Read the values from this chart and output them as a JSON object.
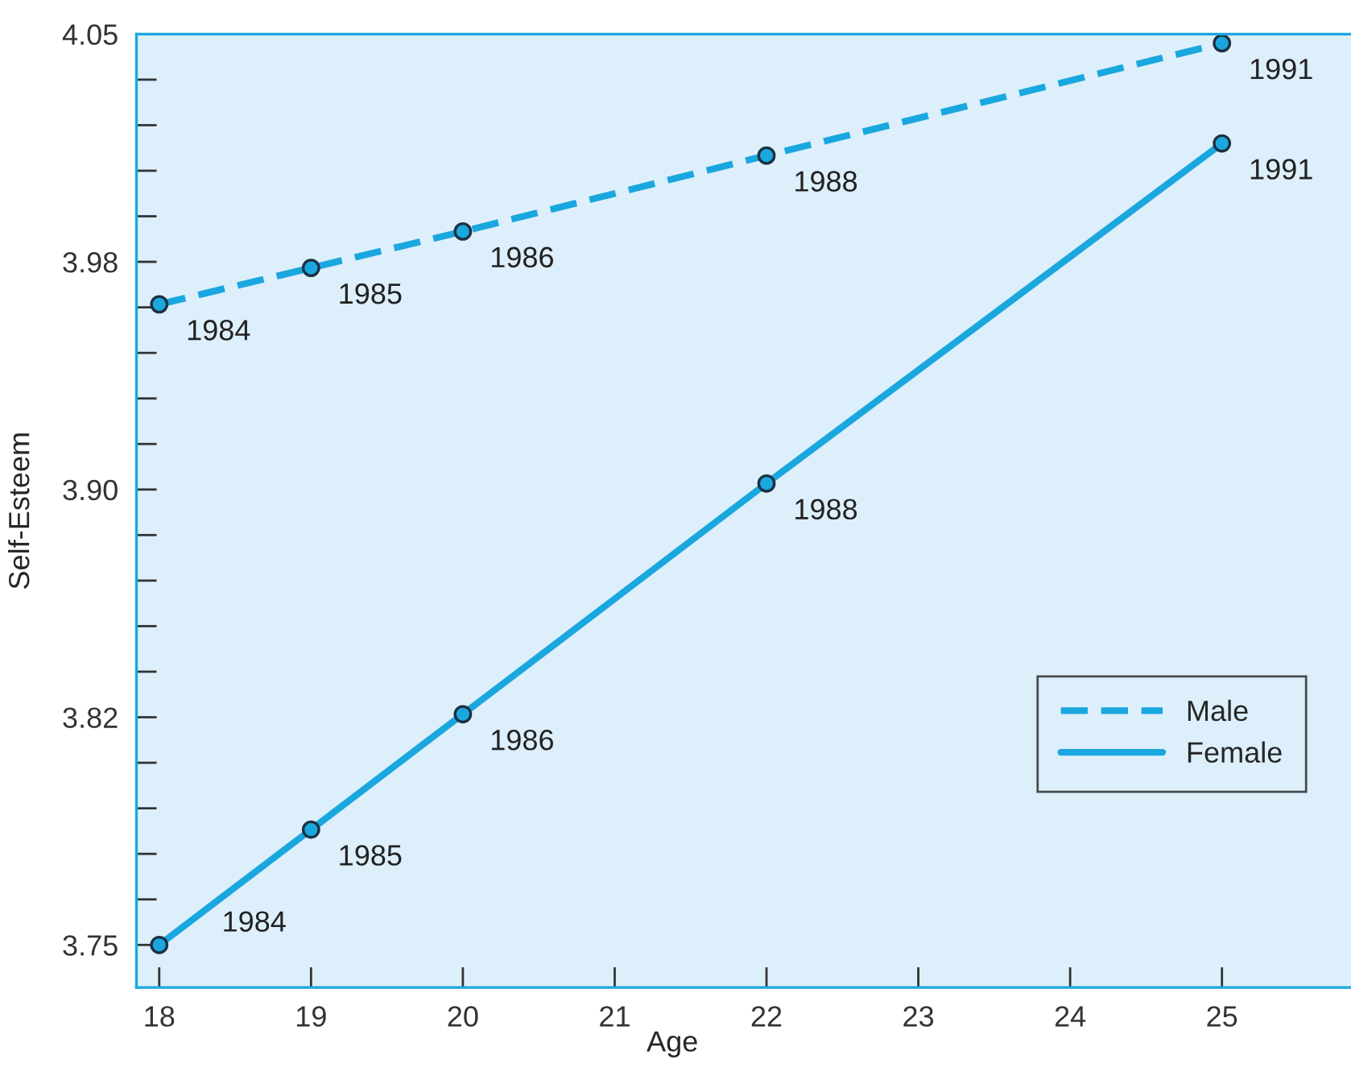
{
  "chart_data": {
    "type": "line",
    "xlabel": "Age",
    "ylabel": "Self-Esteem",
    "x": [
      18,
      19,
      20,
      22,
      25
    ],
    "series": [
      {
        "name": "Male",
        "color": "#1aa7df",
        "line_style": "dashed",
        "values": [
          3.961,
          3.973,
          3.985,
          4.01,
          4.047
        ]
      },
      {
        "name": "Female",
        "color": "#1aa7df",
        "line_style": "solid",
        "values": [
          3.75,
          3.788,
          3.826,
          3.902,
          4.014
        ]
      }
    ],
    "annotations": [
      {
        "text": "1984",
        "x": 18,
        "y": 3.961
      },
      {
        "text": "1985",
        "x": 19,
        "y": 3.973
      },
      {
        "text": "1986",
        "x": 20,
        "y": 3.985
      },
      {
        "text": "1988",
        "x": 22,
        "y": 4.01
      },
      {
        "text": "1991",
        "x": 25,
        "y": 4.047
      },
      {
        "text": "1984",
        "x": 18,
        "y": 3.75
      },
      {
        "text": "1985",
        "x": 19,
        "y": 3.788
      },
      {
        "text": "1986",
        "x": 20,
        "y": 3.826
      },
      {
        "text": "1988",
        "x": 22,
        "y": 3.902
      },
      {
        "text": "1991",
        "x": 25,
        "y": 4.014
      }
    ],
    "xlim": [
      17.85,
      25.85
    ],
    "ylim": [
      3.736,
      4.05
    ],
    "xticks": [
      18,
      19,
      20,
      21,
      22,
      23,
      24,
      25
    ],
    "yticks": [
      {
        "value": 3.75,
        "label": "3.75"
      },
      {
        "value": 3.765,
        "label": null
      },
      {
        "value": 3.78,
        "label": null
      },
      {
        "value": 3.795,
        "label": null
      },
      {
        "value": 3.81,
        "label": null
      },
      {
        "value": 3.825,
        "label": "3.82"
      },
      {
        "value": 3.84,
        "label": null
      },
      {
        "value": 3.855,
        "label": null
      },
      {
        "value": 3.87,
        "label": null
      },
      {
        "value": 3.885,
        "label": null
      },
      {
        "value": 3.9,
        "label": "3.90"
      },
      {
        "value": 3.915,
        "label": null
      },
      {
        "value": 3.93,
        "label": null
      },
      {
        "value": 3.945,
        "label": null
      },
      {
        "value": 3.96,
        "label": null
      },
      {
        "value": 3.975,
        "label": "3.98"
      },
      {
        "value": 3.99,
        "label": null
      },
      {
        "value": 4.005,
        "label": null
      },
      {
        "value": 4.02,
        "label": null
      },
      {
        "value": 4.035,
        "label": null
      },
      {
        "value": 4.05,
        "label": "4.05"
      }
    ],
    "marker": "circle",
    "grid": false,
    "legend": "bottom right"
  }
}
